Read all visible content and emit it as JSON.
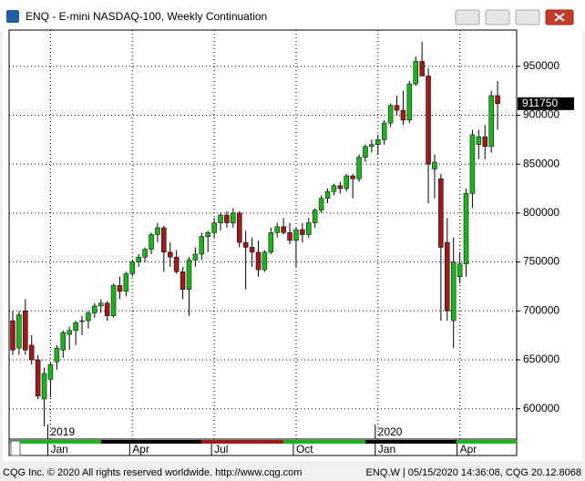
{
  "window": {
    "title": "ENQ - E-mini NASDAQ-100, Weekly Continuation",
    "footer_left": "CQG Inc. © 2020 All rights reserved worldwide. http://www.cqg.com",
    "footer_right": "ENQ.W | 05/15/2020 14:36:08, CQG 20.12.8068"
  },
  "chart_data": {
    "type": "candlestick",
    "up_color": "#1fb21f",
    "down_color": "#9e1b1b",
    "grid": true,
    "ylim": [
      569000,
      987000
    ],
    "yticks": [
      600000,
      650000,
      700000,
      750000,
      800000,
      850000,
      900000,
      950000
    ],
    "xticks": [
      {
        "value": 6,
        "label": "Jan"
      },
      {
        "value": 19,
        "label": "Apr"
      },
      {
        "value": 32,
        "label": "Jul"
      },
      {
        "value": 45,
        "label": "Oct"
      },
      {
        "value": 58,
        "label": "Jan"
      },
      {
        "value": 71,
        "label": "Apr"
      }
    ],
    "year_ticks": [
      {
        "value": 6,
        "label": "2019"
      },
      {
        "value": 58,
        "label": "2020"
      }
    ],
    "open": [
      690000,
      662000,
      700000,
      665000,
      650000,
      610000,
      630000,
      648000,
      660000,
      676000,
      680000,
      690000,
      690000,
      698000,
      705000,
      708000,
      695000,
      726000,
      720000,
      738000,
      750000,
      755000,
      763000,
      778000,
      785000,
      760000,
      755000,
      740000,
      722000,
      752000,
      758000,
      776000,
      780000,
      790000,
      798000,
      790000,
      800000,
      770000,
      765000,
      760000,
      742000,
      760000,
      780000,
      786000,
      780000,
      772000,
      783000,
      778000,
      790000,
      803000,
      815000,
      822000,
      828000,
      825000,
      838000,
      835000,
      857000,
      868000,
      870000,
      875000,
      892000,
      910000,
      905000,
      895000,
      932000,
      955000,
      940000,
      845000,
      835000,
      770000,
      690000,
      735000,
      748000,
      820000,
      870000,
      878000,
      868000,
      920000
    ],
    "high": [
      700000,
      700000,
      712000,
      675000,
      655000,
      642000,
      648000,
      665000,
      680000,
      684000,
      690000,
      695000,
      700000,
      708000,
      712000,
      710000,
      728000,
      735000,
      740000,
      752000,
      758000,
      765000,
      780000,
      790000,
      787000,
      770000,
      762000,
      745000,
      755000,
      765000,
      780000,
      782000,
      795000,
      800000,
      802000,
      805000,
      802000,
      782000,
      775000,
      772000,
      762000,
      785000,
      790000,
      795000,
      790000,
      785000,
      790000,
      795000,
      805000,
      818000,
      825000,
      830000,
      832000,
      840000,
      840000,
      860000,
      870000,
      875000,
      880000,
      895000,
      912000,
      920000,
      925000,
      935000,
      960000,
      975000,
      948000,
      860000,
      840000,
      795000,
      775000,
      760000,
      825000,
      885000,
      885000,
      890000,
      925000,
      935000
    ],
    "low": [
      655000,
      655000,
      655000,
      645000,
      610000,
      582000,
      612000,
      640000,
      652000,
      660000,
      665000,
      675000,
      682000,
      693000,
      698000,
      690000,
      693000,
      712000,
      715000,
      735000,
      745000,
      750000,
      758000,
      770000,
      740000,
      745000,
      738000,
      712000,
      695000,
      745000,
      752000,
      760000,
      775000,
      782000,
      785000,
      785000,
      765000,
      722000,
      745000,
      735000,
      740000,
      758000,
      775000,
      778000,
      768000,
      745000,
      770000,
      775000,
      785000,
      800000,
      810000,
      818000,
      820000,
      822000,
      815000,
      832000,
      852000,
      862000,
      860000,
      870000,
      888000,
      900000,
      890000,
      892000,
      930000,
      940000,
      810000,
      815000,
      690000,
      690000,
      662000,
      728000,
      735000,
      805000,
      855000,
      855000,
      862000,
      885000
    ],
    "close": [
      660000,
      696000,
      660000,
      650000,
      613000,
      636000,
      645000,
      662000,
      678000,
      680000,
      688000,
      690000,
      698000,
      705000,
      708000,
      695000,
      726000,
      720000,
      738000,
      750000,
      755000,
      763000,
      778000,
      785000,
      760000,
      755000,
      740000,
      722000,
      752000,
      758000,
      776000,
      780000,
      790000,
      798000,
      790000,
      800000,
      770000,
      765000,
      760000,
      742000,
      760000,
      780000,
      786000,
      780000,
      772000,
      783000,
      778000,
      790000,
      803000,
      815000,
      822000,
      828000,
      825000,
      838000,
      835000,
      857000,
      868000,
      870000,
      875000,
      892000,
      910000,
      905000,
      895000,
      932000,
      955000,
      940000,
      850000,
      852000,
      765000,
      700000,
      750000,
      748000,
      820000,
      880000,
      878000,
      868000,
      920000,
      911750
    ]
  }
}
